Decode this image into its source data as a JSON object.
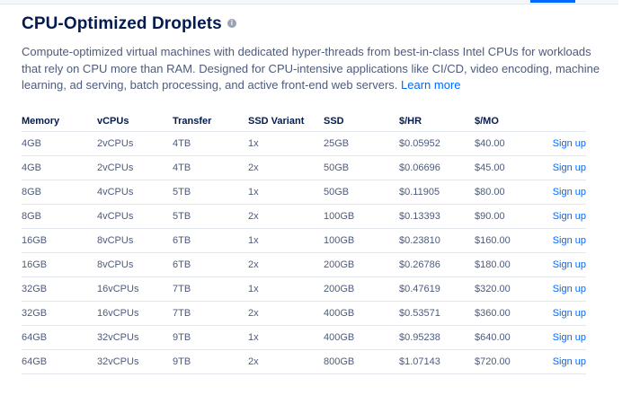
{
  "section": {
    "title": "CPU-Optimized Droplets",
    "info_glyph": "i",
    "description": "Compute-optimized virtual machines with dedicated hyper-threads from best-in-class Intel CPUs for workloads that rely on CPU more than RAM. Designed for CPU-intensive applications like CI/CD, video encoding, machine learning, ad serving, batch processing, and active front-end web servers.",
    "learn_more": "Learn more"
  },
  "table": {
    "headers": [
      "Memory",
      "vCPUs",
      "Transfer",
      "SSD Variant",
      "SSD",
      "$/HR",
      "$/MO"
    ],
    "action_label": "Sign up",
    "rows": [
      [
        "4GB",
        "2vCPUs",
        "4TB",
        "1x",
        "25GB",
        "$0.05952",
        "$40.00"
      ],
      [
        "4GB",
        "2vCPUs",
        "4TB",
        "2x",
        "50GB",
        "$0.06696",
        "$45.00"
      ],
      [
        "8GB",
        "4vCPUs",
        "5TB",
        "1x",
        "50GB",
        "$0.11905",
        "$80.00"
      ],
      [
        "8GB",
        "4vCPUs",
        "5TB",
        "2x",
        "100GB",
        "$0.13393",
        "$90.00"
      ],
      [
        "16GB",
        "8vCPUs",
        "6TB",
        "1x",
        "100GB",
        "$0.23810",
        "$160.00"
      ],
      [
        "16GB",
        "8vCPUs",
        "6TB",
        "2x",
        "200GB",
        "$0.26786",
        "$180.00"
      ],
      [
        "32GB",
        "16vCPUs",
        "7TB",
        "1x",
        "200GB",
        "$0.47619",
        "$320.00"
      ],
      [
        "32GB",
        "16vCPUs",
        "7TB",
        "2x",
        "400GB",
        "$0.53571",
        "$360.00"
      ],
      [
        "64GB",
        "32vCPUs",
        "9TB",
        "1x",
        "400GB",
        "$0.95238",
        "$640.00"
      ],
      [
        "64GB",
        "32vCPUs",
        "9TB",
        "2x",
        "800GB",
        "$1.07143",
        "$720.00"
      ]
    ]
  },
  "colors": {
    "title": "#031b4e",
    "body_text": "#4d5b7c",
    "link": "#0069ff",
    "divider": "#e2e6ed"
  }
}
